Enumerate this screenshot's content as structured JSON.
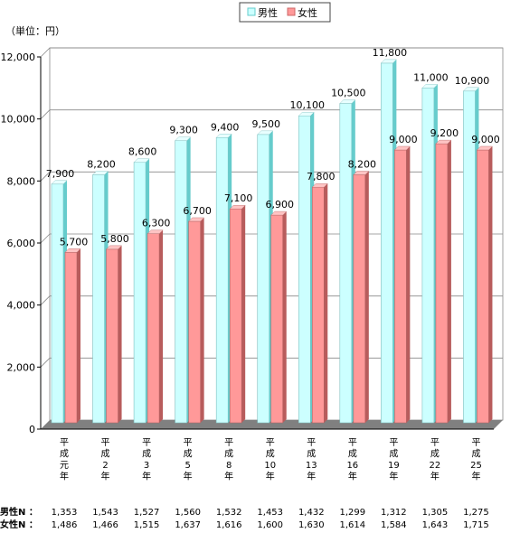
{
  "chart_data": {
    "type": "bar",
    "title": "",
    "unit_label": "（単位：円）",
    "xlabel": "",
    "ylabel": "",
    "ylim": [
      0,
      12000
    ],
    "yticks": [
      0,
      2000,
      4000,
      6000,
      8000,
      10000,
      12000
    ],
    "ytick_labels": [
      "0",
      "2,000",
      "4,000",
      "6,000",
      "8,000",
      "10,000",
      "12,000"
    ],
    "grid": true,
    "legend_position": "top-center",
    "categories": [
      "平成元年",
      "平成2年",
      "平成3年",
      "平成5年",
      "平成8年",
      "平成10年",
      "平成13年",
      "平成16年",
      "平成19年",
      "平成22年",
      "平成25年"
    ],
    "category_labels": [
      [
        "平",
        "成",
        "元",
        "年"
      ],
      [
        "平",
        "成",
        "2",
        "年"
      ],
      [
        "平",
        "成",
        "3",
        "年"
      ],
      [
        "平",
        "成",
        "5",
        "年"
      ],
      [
        "平",
        "成",
        "8",
        "年"
      ],
      [
        "平",
        "成",
        "10",
        "年"
      ],
      [
        "平",
        "成",
        "13",
        "年"
      ],
      [
        "平",
        "成",
        "16",
        "年"
      ],
      [
        "平",
        "成",
        "19",
        "年"
      ],
      [
        "平",
        "成",
        "22",
        "年"
      ],
      [
        "平",
        "成",
        "25",
        "年"
      ]
    ],
    "series": [
      {
        "name": "男性",
        "color": "#ccffff",
        "values": [
          7900,
          8200,
          8600,
          9300,
          9400,
          9500,
          10100,
          10500,
          11800,
          11000,
          10900
        ],
        "value_labels": [
          "7,900",
          "8,200",
          "8,600",
          "9,300",
          "9,400",
          "9,500",
          "10,100",
          "10,500",
          "11,800",
          "11,000",
          "10,900"
        ]
      },
      {
        "name": "女性",
        "color": "#ff9999",
        "values": [
          5700,
          5800,
          6300,
          6700,
          7100,
          6900,
          7800,
          8200,
          9000,
          9200,
          9000
        ],
        "value_labels": [
          "5,700",
          "5,800",
          "6,300",
          "6,700",
          "7,100",
          "6,900",
          "7,800",
          "8,200",
          "9,000",
          "9,200",
          "9,000"
        ]
      }
    ],
    "sample_sizes": [
      {
        "label": "男性N ：",
        "values": [
          "1,353",
          "1,543",
          "1,527",
          "1,560",
          "1,532",
          "1,453",
          "1,432",
          "1,299",
          "1,312",
          "1,305",
          "1,275"
        ]
      },
      {
        "label": "女性N ：",
        "values": [
          "1,486",
          "1,466",
          "1,515",
          "1,637",
          "1,616",
          "1,600",
          "1,630",
          "1,614",
          "1,584",
          "1,643",
          "1,715"
        ]
      }
    ]
  }
}
